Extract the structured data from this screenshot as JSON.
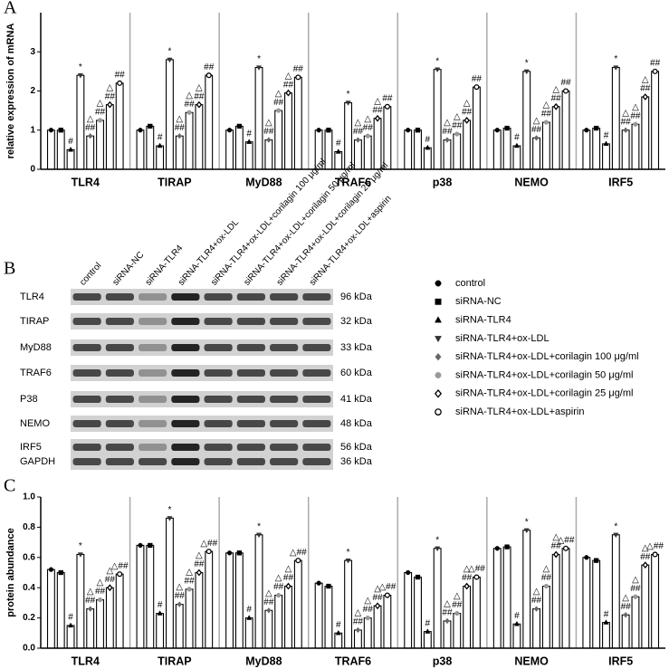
{
  "panel_labels": [
    "A",
    "B",
    "C"
  ],
  "chart_data": [
    {
      "type": "bar",
      "y_label": "relative expression of mRNA",
      "categories": [
        "TLR4",
        "TIRAP",
        "MyD88",
        "TRAF6",
        "p38",
        "NEMO",
        "IRF5"
      ],
      "ylim": [
        0,
        4
      ],
      "yticks": [
        0,
        1,
        2,
        3
      ],
      "bar_color": "#ffffff",
      "edge_color": "#000000",
      "series": [
        {
          "name": "control",
          "color": "#000000",
          "marker": "circle",
          "values": [
            1,
            1,
            1,
            1,
            1,
            1,
            1
          ],
          "annotations": []
        },
        {
          "name": "siRNA-NC",
          "color": "#000000",
          "marker": "square",
          "values": [
            1,
            1.1,
            1.1,
            1,
            1,
            1.05,
            1.05
          ],
          "annotations": []
        },
        {
          "name": "siRNA-TLR4",
          "color": "#000000",
          "marker": "triangle-up",
          "values": [
            0.5,
            0.6,
            0.7,
            0.45,
            0.55,
            0.6,
            0.65
          ],
          "annotations": [
            "#"
          ]
        },
        {
          "name": "siRNA-TLR4+ox-LDL",
          "color": "#333333",
          "marker": "triangle-down",
          "values": [
            2.4,
            2.8,
            2.6,
            1.7,
            2.55,
            2.5,
            2.6
          ],
          "annotations": [
            "*"
          ]
        },
        {
          "name": "siRNA-TLR4+ox-LDL+corilagin 100 μg/ml",
          "color": "#666666",
          "marker": "diamond",
          "values": [
            0.85,
            0.85,
            0.75,
            0.75,
            0.75,
            0.8,
            1.0
          ],
          "annotations": [
            "△",
            "##"
          ]
        },
        {
          "name": "siRNA-TLR4+ox-LDL+corilagin 50 μg/ml",
          "color": "#999999",
          "marker": "circle",
          "values": [
            1.25,
            1.45,
            1.5,
            0.85,
            0.9,
            1.2,
            1.15
          ],
          "annotations": [
            "△",
            "##"
          ]
        },
        {
          "name": "siRNA-TLR4+ox-LDL+corilagin 25 μg/ml",
          "color": "#000000",
          "marker": "diamond-open",
          "values": [
            1.65,
            1.65,
            1.95,
            1.3,
            1.25,
            1.6,
            1.85
          ],
          "annotations": [
            "△",
            "##"
          ]
        },
        {
          "name": "siRNA-TLR4+ox-LDL+aspirin",
          "color": "#000000",
          "marker": "circle-open",
          "values": [
            2.2,
            2.4,
            2.35,
            1.6,
            2.1,
            2.0,
            2.5
          ],
          "annotations": [
            "##"
          ]
        }
      ]
    },
    {
      "type": "bar",
      "y_label": "protein abundance",
      "categories": [
        "TLR4",
        "TIRAP",
        "MyD88",
        "TRAF6",
        "p38",
        "NEMO",
        "IRF5"
      ],
      "ylim": [
        0,
        1.0
      ],
      "yticks": [
        {
          "value": 0,
          "label": "0.0"
        },
        {
          "value": 0.2,
          "label": "0.2"
        },
        {
          "value": 0.4,
          "label": "0.4"
        },
        {
          "value": 0.6,
          "label": "0.6"
        },
        {
          "value": 0.8,
          "label": "0.8"
        },
        {
          "value": 1.0,
          "label": "1.0"
        }
      ],
      "bar_color": "#ffffff",
      "edge_color": "#000000",
      "series": [
        {
          "color": "#000000",
          "marker": "circle",
          "values": [
            0.52,
            0.68,
            0.63,
            0.43,
            0.5,
            0.66,
            0.6
          ],
          "annotations": []
        },
        {
          "color": "#000000",
          "marker": "square",
          "values": [
            0.5,
            0.68,
            0.63,
            0.41,
            0.47,
            0.67,
            0.58
          ],
          "annotations": []
        },
        {
          "color": "#000000",
          "marker": "triangle-up",
          "values": [
            0.15,
            0.23,
            0.2,
            0.1,
            0.11,
            0.16,
            0.17
          ],
          "annotations": [
            "#"
          ]
        },
        {
          "color": "#333333",
          "marker": "triangle-down",
          "values": [
            0.62,
            0.86,
            0.75,
            0.58,
            0.66,
            0.78,
            0.75
          ],
          "annotations": [
            "*"
          ]
        },
        {
          "color": "#666666",
          "marker": "diamond",
          "values": [
            0.26,
            0.29,
            0.25,
            0.12,
            0.18,
            0.26,
            0.22
          ],
          "annotations": [
            "△",
            "##"
          ]
        },
        {
          "color": "#999999",
          "marker": "circle",
          "values": [
            0.32,
            0.39,
            0.35,
            0.2,
            0.23,
            0.41,
            0.34
          ],
          "annotations": [
            "△",
            "##"
          ]
        },
        {
          "color": "#000000",
          "marker": "diamond-open",
          "values": [
            0.4,
            0.5,
            0.41,
            0.28,
            0.41,
            0.62,
            0.55
          ],
          "annotations": [
            "△",
            "##"
          ]
        },
        {
          "color": "#000000",
          "marker": "circle-open",
          "values": [
            0.49,
            0.64,
            0.58,
            0.35,
            0.47,
            0.66,
            0.62
          ],
          "annotations": [
            "△##"
          ]
        }
      ]
    }
  ],
  "blot": {
    "rows": [
      {
        "label": "TLR4",
        "size": "96 kDa"
      },
      {
        "label": "TIRAP",
        "size": "32 kDa"
      },
      {
        "label": "MyD88",
        "size": "33 kDa"
      },
      {
        "label": "TRAF6",
        "size": "60 kDa"
      },
      {
        "label": "P38",
        "size": "41 kDa"
      },
      {
        "label": "NEMO",
        "size": "48 kDa"
      },
      {
        "label": "IRF5",
        "size": "56 kDa"
      },
      {
        "label": "GAPDH",
        "size": "36 kDa"
      }
    ]
  }
}
